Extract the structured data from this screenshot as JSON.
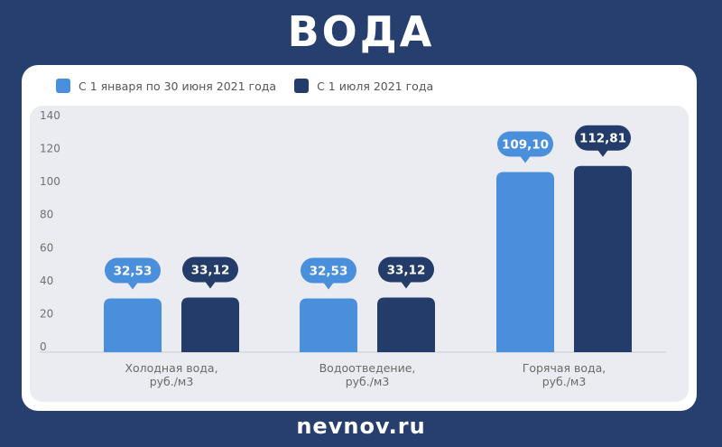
{
  "header": {
    "title": "ВОДА"
  },
  "footer": {
    "site": "nevnov.ru"
  },
  "legend": {
    "items": [
      {
        "label": "С 1 января по 30 июня 2021 года",
        "color": "#4a8fdc"
      },
      {
        "label": "С 1 июля 2021 года",
        "color": "#243c69"
      }
    ]
  },
  "chart_data": {
    "type": "bar",
    "categories": [
      [
        "Холодная вода,",
        "руб./м3"
      ],
      [
        "Водоотведение,",
        "руб./м3"
      ],
      [
        "Горячая вода,",
        "руб./м3"
      ]
    ],
    "series": [
      {
        "name": "С 1 января по 30 июня 2021 года",
        "values": [
          32.53,
          32.53,
          109.1
        ],
        "labels": [
          "32,53",
          "32,53",
          "109,10"
        ],
        "color": "#4a8fdc"
      },
      {
        "name": "С 1 июля 2021 года",
        "values": [
          33.12,
          33.12,
          112.81
        ],
        "labels": [
          "33,12",
          "33,12",
          "112,81"
        ],
        "color": "#243c69"
      }
    ],
    "yticks": [
      "0",
      "20",
      "40",
      "60",
      "80",
      "100",
      "120",
      "140"
    ],
    "ylim": [
      0,
      140
    ],
    "grid": false,
    "legend_position": "top-left"
  }
}
